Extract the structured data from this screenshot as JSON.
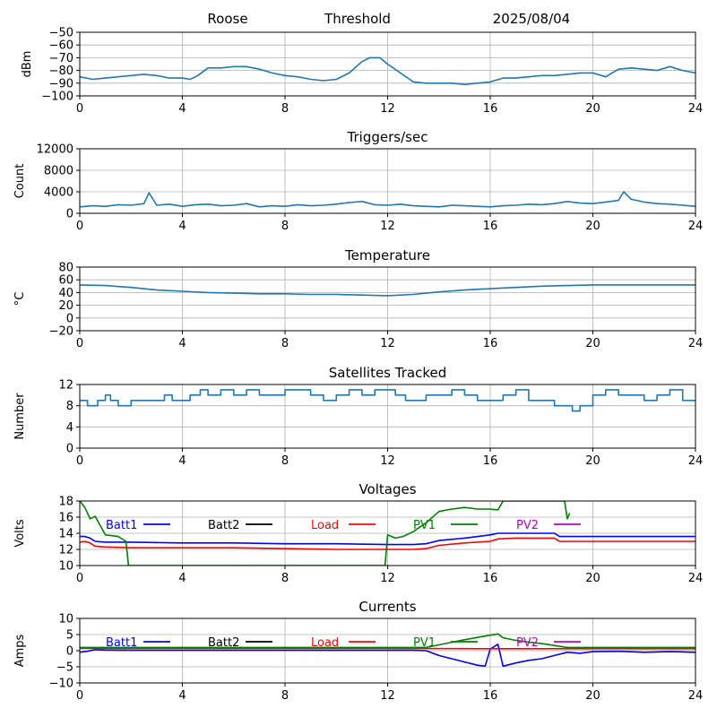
{
  "header": {
    "station": "Roose",
    "mode": "Threshold",
    "date": "2025/08/04"
  },
  "x_ticks": [
    "0",
    "4",
    "8",
    "12",
    "16",
    "20",
    "24"
  ],
  "chart_data": [
    {
      "id": "rssi",
      "type": "line",
      "title": "",
      "ylabel": "dBm",
      "xlim": [
        0,
        24
      ],
      "ylim": [
        -100,
        -50
      ],
      "yticks": [
        -100,
        -90,
        -80,
        -70,
        -60,
        -50
      ],
      "ytick_labels": [
        "−100",
        "−90",
        "−80",
        "−70",
        "−60",
        "−50"
      ],
      "series": [
        {
          "color": "#1f77b4",
          "x": [
            0,
            0.5,
            1,
            1.5,
            2,
            2.5,
            3,
            3.5,
            4,
            4.3,
            4.6,
            5,
            5.5,
            6,
            6.5,
            7,
            7.5,
            8,
            8.5,
            9,
            9.5,
            10,
            10.5,
            11,
            11.3,
            11.7,
            12,
            12.5,
            13,
            13.5,
            14,
            14.5,
            15,
            15.5,
            16,
            16.5,
            17,
            17.5,
            18,
            18.5,
            19,
            19.5,
            20,
            20.5,
            21,
            21.5,
            22,
            22.5,
            23,
            23.5,
            24
          ],
          "values": [
            -85,
            -87,
            -86,
            -85,
            -84,
            -83,
            -84,
            -86,
            -86,
            -87,
            -84,
            -78,
            -78,
            -77,
            -77,
            -79,
            -82,
            -84,
            -85,
            -87,
            -88,
            -87,
            -82,
            -73,
            -70,
            -70,
            -75,
            -82,
            -89,
            -90,
            -90,
            -90,
            -91,
            -90,
            -89,
            -86,
            -86,
            -85,
            -84,
            -84,
            -83,
            -82,
            -82,
            -85,
            -79,
            -78,
            -79,
            -80,
            -77,
            -80,
            -82
          ]
        }
      ]
    },
    {
      "id": "triggers",
      "type": "line",
      "title": "Triggers/sec",
      "ylabel": "Count",
      "xlim": [
        0,
        24
      ],
      "ylim": [
        0,
        12000
      ],
      "yticks": [
        0,
        4000,
        8000,
        12000
      ],
      "ytick_labels": [
        "0",
        "4000",
        "8000",
        "12000"
      ],
      "series": [
        {
          "color": "#1f77b4",
          "x": [
            0,
            0.5,
            1,
            1.5,
            2,
            2.5,
            2.7,
            3,
            3.5,
            4,
            4.5,
            5,
            5.5,
            6,
            6.5,
            7,
            7.5,
            8,
            8.5,
            9,
            9.5,
            10,
            10.5,
            11,
            11.5,
            12,
            12.5,
            13,
            13.5,
            14,
            14.5,
            15,
            15.5,
            16,
            16.5,
            17,
            17.5,
            18,
            18.5,
            19,
            19.5,
            20,
            20.5,
            21,
            21.2,
            21.5,
            22,
            22.5,
            23,
            23.5,
            24
          ],
          "values": [
            1200,
            1400,
            1300,
            1600,
            1500,
            1800,
            3800,
            1500,
            1700,
            1300,
            1600,
            1700,
            1400,
            1500,
            1800,
            1200,
            1400,
            1300,
            1600,
            1400,
            1500,
            1700,
            2000,
            2200,
            1600,
            1500,
            1700,
            1400,
            1300,
            1200,
            1500,
            1400,
            1300,
            1200,
            1400,
            1500,
            1700,
            1600,
            1800,
            2200,
            1900,
            1800,
            2100,
            2400,
            4000,
            2600,
            2100,
            1800,
            1700,
            1500,
            1300
          ]
        }
      ]
    },
    {
      "id": "temperature",
      "type": "line",
      "title": "Temperature",
      "ylabel": "°C",
      "xlim": [
        0,
        24
      ],
      "ylim": [
        -20,
        80
      ],
      "yticks": [
        -20,
        0,
        20,
        40,
        60,
        80
      ],
      "ytick_labels": [
        "−20",
        "0",
        "20",
        "40",
        "60",
        "80"
      ],
      "series": [
        {
          "color": "#1f77b4",
          "x": [
            0,
            1,
            2,
            3,
            4,
            5,
            6,
            7,
            8,
            9,
            10,
            11,
            12,
            13,
            14,
            15,
            16,
            17,
            18,
            19,
            20,
            21,
            22,
            23,
            24
          ],
          "values": [
            52,
            51,
            48,
            44,
            42,
            40,
            39,
            38,
            38,
            37,
            37,
            36,
            35,
            37,
            41,
            44,
            46,
            48,
            50,
            51,
            52,
            52,
            52,
            52,
            52
          ]
        }
      ]
    },
    {
      "id": "satellites",
      "type": "line",
      "title": "Satellites Tracked",
      "ylabel": "Number",
      "xlim": [
        0,
        24
      ],
      "ylim": [
        0,
        12
      ],
      "yticks": [
        0,
        4,
        8,
        12
      ],
      "ytick_labels": [
        "0",
        "4",
        "8",
        "12"
      ],
      "series": [
        {
          "color": "#1f77b4",
          "step": true,
          "x": [
            0,
            0.3,
            0.7,
            1,
            1.2,
            1.5,
            2,
            2.5,
            3,
            3.3,
            3.6,
            4,
            4.3,
            4.7,
            5,
            5.5,
            6,
            6.5,
            7,
            7.5,
            8,
            8.5,
            9,
            9.5,
            10,
            10.5,
            11,
            11.5,
            12,
            12.3,
            12.7,
            13,
            13.5,
            14,
            14.5,
            15,
            15.5,
            16,
            16.5,
            17,
            17.5,
            18,
            18.5,
            19,
            19.2,
            19.5,
            20,
            20.5,
            21,
            21.5,
            22,
            22.5,
            23,
            23.5,
            24
          ],
          "values": [
            9,
            8,
            9,
            10,
            9,
            8,
            9,
            9,
            9,
            10,
            9,
            9,
            10,
            11,
            10,
            11,
            10,
            11,
            10,
            10,
            11,
            11,
            10,
            9,
            10,
            11,
            10,
            11,
            11,
            10,
            9,
            9,
            10,
            10,
            11,
            10,
            9,
            9,
            10,
            11,
            9,
            9,
            8,
            8,
            7,
            8,
            10,
            11,
            10,
            10,
            9,
            10,
            11,
            9,
            9
          ]
        }
      ]
    },
    {
      "id": "voltages",
      "type": "line",
      "title": "Voltages",
      "ylabel": "Volts",
      "xlim": [
        0,
        24
      ],
      "ylim": [
        10,
        18
      ],
      "yticks": [
        10,
        12,
        14,
        16,
        18
      ],
      "ytick_labels": [
        "10",
        "12",
        "14",
        "16",
        "18"
      ],
      "legend": [
        {
          "name": "Batt1",
          "color": "#0000ff"
        },
        {
          "name": "Batt2",
          "color": "#000000"
        },
        {
          "name": "Load",
          "color": "#ff0000"
        },
        {
          "name": "PV1",
          "color": "#008000"
        },
        {
          "name": "PV2",
          "color": "#c000c0"
        }
      ],
      "series": [
        {
          "name": "Batt1",
          "color": "#0000ff",
          "x": [
            0,
            0.2,
            0.4,
            0.6,
            1,
            2,
            4,
            6,
            8,
            10,
            12,
            13,
            13.5,
            14,
            15,
            16,
            16.3,
            17,
            18,
            18.5,
            18.7,
            20,
            22,
            24
          ],
          "values": [
            13.6,
            13.6,
            13.4,
            13.0,
            12.9,
            12.9,
            12.8,
            12.8,
            12.7,
            12.7,
            12.6,
            12.6,
            12.7,
            13.1,
            13.4,
            13.8,
            14.0,
            14.0,
            14.0,
            14.0,
            13.6,
            13.6,
            13.6,
            13.6
          ]
        },
        {
          "name": "Load",
          "color": "#ff0000",
          "x": [
            0,
            0.2,
            0.4,
            0.6,
            1,
            2,
            4,
            6,
            8,
            10,
            12,
            13,
            13.5,
            14,
            15,
            16,
            16.3,
            17,
            18,
            18.5,
            18.7,
            20,
            22,
            24
          ],
          "values": [
            12.9,
            13.0,
            12.8,
            12.4,
            12.3,
            12.2,
            12.2,
            12.2,
            12.1,
            12.0,
            12.0,
            12.0,
            12.1,
            12.5,
            12.8,
            13.0,
            13.3,
            13.4,
            13.4,
            13.4,
            13.0,
            13.0,
            13.0,
            13.0
          ]
        },
        {
          "name": "PV1",
          "color": "#008000",
          "x": [
            0,
            0.2,
            0.4,
            0.6,
            1,
            1.5,
            1.8,
            1.9,
            11.9,
            12,
            12.3,
            12.6,
            13,
            13.5,
            14,
            14.5,
            15,
            15.5,
            16,
            16.3,
            16.5,
            18.9,
            19,
            19.1
          ],
          "values": [
            18,
            17.2,
            15.8,
            16.1,
            13.8,
            13.6,
            13.0,
            10,
            10,
            13.8,
            13.4,
            13.6,
            14.2,
            15.3,
            16.7,
            17.0,
            17.2,
            17.0,
            17.0,
            16.9,
            18,
            18,
            15.8,
            16.5
          ]
        }
      ]
    },
    {
      "id": "currents",
      "type": "line",
      "title": "Currents",
      "ylabel": "Amps",
      "xlim": [
        0,
        24
      ],
      "ylim": [
        -10,
        10
      ],
      "yticks": [
        -10,
        -5,
        0,
        5,
        10
      ],
      "ytick_labels": [
        "−10",
        "−5",
        "0",
        "5",
        "10"
      ],
      "legend": [
        {
          "name": "Batt1",
          "color": "#0000ff"
        },
        {
          "name": "Batt2",
          "color": "#000000"
        },
        {
          "name": "Load",
          "color": "#ff0000"
        },
        {
          "name": "PV1",
          "color": "#008000"
        },
        {
          "name": "PV2",
          "color": "#c000c0"
        }
      ],
      "series": [
        {
          "name": "Batt1",
          "color": "#0000ff",
          "x": [
            0,
            0.3,
            0.6,
            1,
            2,
            4,
            8,
            12,
            13,
            13.5,
            14,
            14.5,
            15,
            15.5,
            15.8,
            16,
            16.3,
            16.5,
            17,
            17.5,
            18,
            18.5,
            19,
            19.5,
            20,
            21,
            22,
            23,
            24
          ],
          "values": [
            -0.5,
            -0.2,
            0.3,
            0.2,
            0.1,
            0.1,
            0.1,
            0.1,
            0.1,
            0,
            -1.5,
            -2.5,
            -3.5,
            -4.5,
            -4.8,
            0.5,
            2.0,
            -4.8,
            -3.8,
            -3.0,
            -2.5,
            -1.5,
            -0.5,
            -0.8,
            -0.3,
            -0.2,
            -0.5,
            -0.3,
            -0.5
          ]
        },
        {
          "name": "Load",
          "color": "#ff0000",
          "x": [
            0,
            4,
            8,
            12,
            16,
            20,
            24
          ],
          "values": [
            0.7,
            0.7,
            0.7,
            0.7,
            0.6,
            0.6,
            0.6
          ]
        },
        {
          "name": "PV1",
          "color": "#008000",
          "x": [
            0,
            4,
            8,
            12,
            13,
            13.5,
            14,
            14.5,
            15,
            15.5,
            16,
            16.3,
            16.5,
            17,
            17.5,
            18,
            18.5,
            19,
            20,
            22,
            24
          ],
          "values": [
            1.0,
            1.0,
            1.0,
            1.0,
            1.0,
            1.0,
            1.8,
            2.6,
            3.4,
            4.1,
            4.8,
            5.2,
            4.0,
            3.2,
            2.6,
            2.2,
            1.6,
            1.0,
            1.0,
            1.0,
            1.0
          ]
        }
      ]
    }
  ]
}
